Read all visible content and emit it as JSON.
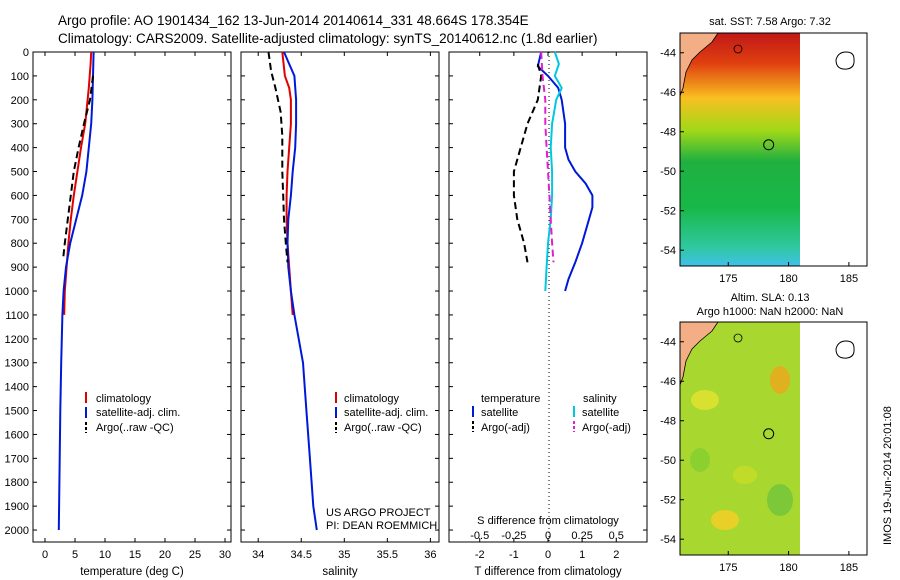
{
  "header": {
    "title_line1": "Argo profile: AO 1901434_162 13-Jun-2014 20140614_331 48.664S 178.354E",
    "title_line2": "Climatology: CARS2009. Satellite-adjusted climatology: synTS_20140612.nc (1.8d earlier)"
  },
  "colors": {
    "climatology": "#e00000",
    "satellite": "#0018d8",
    "argo": "#000000",
    "sal_satellite": "#00c8e0",
    "sal_argo": "#e020d0"
  },
  "chart_data": [
    {
      "type": "line",
      "panel": "temperature",
      "xlabel": "temperature (deg C)",
      "ylabel": "",
      "xlim": [
        -2,
        31
      ],
      "ylim": [
        2050,
        0
      ],
      "xticks": [
        0,
        5,
        10,
        15,
        20,
        25,
        30
      ],
      "yticks": [
        0,
        100,
        200,
        300,
        400,
        500,
        600,
        700,
        800,
        900,
        1000,
        1100,
        1200,
        1300,
        1400,
        1500,
        1600,
        1700,
        1800,
        1900,
        2000
      ],
      "legend": [
        "climatology",
        "satellite-adj. clim.",
        "Argo(..raw -QC)"
      ],
      "series": [
        {
          "name": "climatology",
          "style": "solid",
          "points": [
            [
              7.7,
              0
            ],
            [
              7.6,
              50
            ],
            [
              7.3,
              150
            ],
            [
              6.7,
              300
            ],
            [
              6.0,
              400
            ],
            [
              5.4,
              500
            ],
            [
              4.8,
              600
            ],
            [
              4.3,
              700
            ],
            [
              3.9,
              800
            ],
            [
              3.6,
              900
            ],
            [
              3.3,
              1000
            ],
            [
              3.2,
              1100
            ]
          ]
        },
        {
          "name": "satellite-adj. clim.",
          "style": "solid",
          "points": [
            [
              8.1,
              0
            ],
            [
              8.0,
              100
            ],
            [
              7.9,
              200
            ],
            [
              7.7,
              300
            ],
            [
              7.3,
              400
            ],
            [
              6.9,
              500
            ],
            [
              6.2,
              600
            ],
            [
              5.2,
              700
            ],
            [
              4.2,
              800
            ],
            [
              3.5,
              900
            ],
            [
              3.1,
              1000
            ],
            [
              2.9,
              1100
            ],
            [
              2.7,
              1300
            ],
            [
              2.55,
              1500
            ],
            [
              2.45,
              1700
            ],
            [
              2.35,
              1900
            ],
            [
              2.3,
              2000
            ]
          ]
        },
        {
          "name": "Argo(..raw -QC)",
          "style": "dashed",
          "points": [
            [
              8.0,
              100
            ],
            [
              7.5,
              200
            ],
            [
              6.5,
              300
            ],
            [
              5.6,
              400
            ],
            [
              4.8,
              500
            ],
            [
              4.3,
              600
            ],
            [
              3.8,
              700
            ],
            [
              3.3,
              800
            ],
            [
              3.0,
              870
            ]
          ]
        }
      ]
    },
    {
      "type": "line",
      "panel": "salinity",
      "xlabel": "salinity",
      "ylabel": "",
      "xlim": [
        33.8,
        36.1
      ],
      "ylim": [
        2050,
        0
      ],
      "xticks": [
        34,
        34.5,
        35,
        35.5,
        36
      ],
      "xticklabels": [
        "34",
        "34.5",
        "35",
        "35.5",
        "36"
      ],
      "legend": [
        "climatology",
        "satellite-adj. clim.",
        "Argo(..raw -QC)"
      ],
      "annotation": [
        "US ARGO PROJECT",
        "PI: DEAN ROEMMICH"
      ],
      "series": [
        {
          "name": "climatology",
          "style": "solid",
          "points": [
            [
              34.28,
              0
            ],
            [
              34.31,
              100
            ],
            [
              34.36,
              150
            ],
            [
              34.38,
              200
            ],
            [
              34.38,
              300
            ],
            [
              34.36,
              400
            ],
            [
              34.34,
              500
            ],
            [
              34.33,
              600
            ],
            [
              34.33,
              700
            ],
            [
              34.34,
              800
            ],
            [
              34.36,
              900
            ],
            [
              34.38,
              1000
            ],
            [
              34.4,
              1100
            ]
          ]
        },
        {
          "name": "satellite-adj. clim.",
          "style": "solid",
          "points": [
            [
              34.3,
              0
            ],
            [
              34.36,
              50
            ],
            [
              34.42,
              100
            ],
            [
              34.44,
              200
            ],
            [
              34.44,
              300
            ],
            [
              34.43,
              400
            ],
            [
              34.4,
              500
            ],
            [
              34.38,
              600
            ],
            [
              34.35,
              700
            ],
            [
              34.34,
              800
            ],
            [
              34.35,
              900
            ],
            [
              34.38,
              1000
            ],
            [
              34.42,
              1100
            ],
            [
              34.47,
              1200
            ],
            [
              34.52,
              1300
            ],
            [
              34.56,
              1500
            ],
            [
              34.6,
              1700
            ],
            [
              34.64,
              1900
            ],
            [
              34.68,
              2000
            ]
          ]
        },
        {
          "name": "Argo(..raw -QC)",
          "style": "dashed",
          "points": [
            [
              34.12,
              0
            ],
            [
              34.15,
              80
            ],
            [
              34.2,
              150
            ],
            [
              34.26,
              250
            ],
            [
              34.28,
              350
            ],
            [
              34.28,
              500
            ],
            [
              34.29,
              600
            ],
            [
              34.3,
              700
            ],
            [
              34.32,
              800
            ],
            [
              34.34,
              880
            ]
          ]
        }
      ]
    },
    {
      "type": "line",
      "panel": "difference",
      "xlabel": "T difference from climatology",
      "xlabel_top": "S difference from climatology",
      "xlim": [
        -2.9,
        2.9
      ],
      "ylim": [
        2050,
        0
      ],
      "xticks": [
        -2,
        -1,
        0,
        1,
        2
      ],
      "xticklabels_top": [
        "-0.5",
        "-0.25",
        "0",
        "0.25",
        "0.5"
      ],
      "legend_headers": [
        "temperature",
        "salinity"
      ],
      "legend": [
        "satellite",
        "Argo(-adj)",
        "satellite",
        "Argo(-adj)"
      ],
      "series": [
        {
          "name": "satellite",
          "quantity": "temperature",
          "style": "solid",
          "points": [
            [
              -0.2,
              0
            ],
            [
              -0.3,
              60
            ],
            [
              0,
              100
            ],
            [
              0.3,
              150
            ],
            [
              0.4,
              200
            ],
            [
              0.5,
              300
            ],
            [
              0.5,
              400
            ],
            [
              0.6,
              450
            ],
            [
              0.8,
              500
            ],
            [
              1.1,
              550
            ],
            [
              1.3,
              600
            ],
            [
              1.3,
              650
            ],
            [
              1.2,
              700
            ],
            [
              1.0,
              800
            ],
            [
              0.8,
              880
            ],
            [
              0.6,
              950
            ],
            [
              0.5,
              1000
            ]
          ]
        },
        {
          "name": "Argo(-adj)",
          "quantity": "temperature",
          "style": "dashed",
          "points": [
            [
              -0.3,
              50
            ],
            [
              -0.2,
              100
            ],
            [
              -0.3,
              200
            ],
            [
              -0.6,
              300
            ],
            [
              -0.8,
              400
            ],
            [
              -1.0,
              500
            ],
            [
              -1.0,
              600
            ],
            [
              -0.9,
              700
            ],
            [
              -0.7,
              800
            ],
            [
              -0.6,
              880
            ]
          ]
        },
        {
          "name": "satellite",
          "quantity": "salinity",
          "style": "solid",
          "points": [
            [
              0.05,
              0
            ],
            [
              0.08,
              50
            ],
            [
              0.05,
              100
            ],
            [
              0.1,
              150
            ],
            [
              0.06,
              200
            ],
            [
              0.03,
              300
            ],
            [
              0.02,
              400
            ],
            [
              0.03,
              500
            ],
            [
              0.03,
              600
            ],
            [
              0.02,
              700
            ],
            [
              0.0,
              800
            ],
            [
              -0.01,
              900
            ],
            [
              -0.02,
              1000
            ]
          ]
        },
        {
          "name": "Argo(-adj)",
          "quantity": "salinity",
          "style": "dashed",
          "points": [
            [
              -0.05,
              0
            ],
            [
              -0.04,
              100
            ],
            [
              -0.02,
              200
            ],
            [
              -0.02,
              300
            ],
            [
              -0.01,
              400
            ],
            [
              0.0,
              500
            ],
            [
              0.01,
              600
            ],
            [
              0.02,
              700
            ],
            [
              0.03,
              800
            ],
            [
              0.04,
              880
            ]
          ]
        }
      ]
    },
    {
      "type": "heatmap",
      "panel": "sst_map",
      "title": "sat. SST: 7.58 Argo: 7.32",
      "xlim": [
        171,
        186.5
      ],
      "ylim": [
        -54.8,
        -43
      ],
      "xticks": [
        175,
        180,
        185
      ],
      "yticks": [
        -44,
        -46,
        -48,
        -50,
        -52,
        -54
      ],
      "argo_position": [
        178.35,
        -48.66
      ]
    },
    {
      "type": "heatmap",
      "panel": "sla_map",
      "title": [
        "Altim. SLA: 0.13",
        "Argo h1000: NaN h2000: NaN"
      ],
      "xlim": [
        171,
        186.5
      ],
      "ylim": [
        -54.8,
        -43
      ],
      "xticks": [
        175,
        180,
        185
      ],
      "yticks": [
        -44,
        -46,
        -48,
        -50,
        -52,
        -54
      ],
      "argo_position": [
        178.35,
        -48.66
      ]
    }
  ],
  "footer": {
    "side_label": "IMOS 19-Jun-2014 20:01:08"
  }
}
